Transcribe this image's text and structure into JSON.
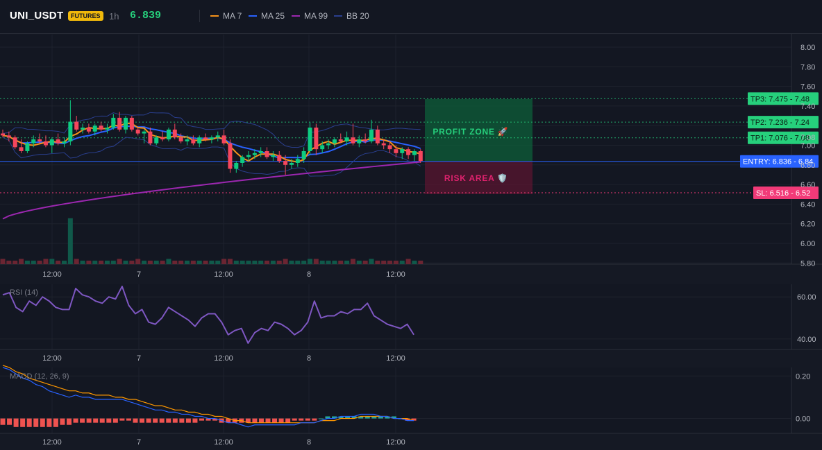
{
  "header": {
    "symbol": "UNI_USDT",
    "badge": "FUTURES",
    "timeframe": "1h",
    "price": "6.839",
    "indicators": [
      {
        "label": "MA 7",
        "color": "#f7931a"
      },
      {
        "label": "MA 25",
        "color": "#2962ff"
      },
      {
        "label": "MA 99",
        "color": "#9c27b0"
      },
      {
        "label": "BB 20",
        "color": "#2a3f8f"
      }
    ]
  },
  "levels": {
    "tp3": {
      "label": "TP3: 7.475 - 7.48",
      "value": 7.475
    },
    "tp2": {
      "label": "TP2: 7.236 - 7.24",
      "value": 7.236
    },
    "tp1": {
      "label": "TP1: 7.076 - 7.08",
      "value": 7.076
    },
    "entry": {
      "label": "ENTRY: 6.836 - 6.84",
      "value": 6.836
    },
    "sl": {
      "label": "SL: 6.516 - 6.52",
      "value": 6.516
    }
  },
  "zones": {
    "profit_label": "PROFIT ZONE 🚀",
    "risk_label": "RISK AREA 🛡️"
  },
  "panels": {
    "rsi_label": "RSI (14)",
    "macd_label": "MACD (12, 26, 9)"
  },
  "chart_data": {
    "type": "candlestick",
    "x_tick_labels": [
      "12:00",
      "7",
      "12:00",
      "8",
      "12:00"
    ],
    "price_axis": {
      "ticks": [
        "8.00",
        "7.80",
        "7.60",
        "7.40",
        "7.08",
        "7.00",
        "6.80",
        "6.60",
        "6.40",
        "6.20",
        "6.00",
        "5.80"
      ],
      "range": [
        5.8,
        8.0
      ]
    },
    "candles": [
      {
        "o": 7.12,
        "h": 7.16,
        "l": 7.08,
        "c": 7.1
      },
      {
        "o": 7.1,
        "h": 7.14,
        "l": 7.04,
        "c": 7.08
      },
      {
        "o": 7.08,
        "h": 7.1,
        "l": 6.96,
        "c": 6.98
      },
      {
        "o": 6.98,
        "h": 7.06,
        "l": 6.92,
        "c": 6.94
      },
      {
        "o": 6.94,
        "h": 7.04,
        "l": 6.92,
        "c": 7.02
      },
      {
        "o": 7.02,
        "h": 7.1,
        "l": 6.98,
        "c": 7.06
      },
      {
        "o": 7.06,
        "h": 7.12,
        "l": 7.02,
        "c": 7.04
      },
      {
        "o": 7.04,
        "h": 7.1,
        "l": 6.98,
        "c": 7.0
      },
      {
        "o": 7.0,
        "h": 7.08,
        "l": 6.92,
        "c": 7.06
      },
      {
        "o": 7.06,
        "h": 7.12,
        "l": 7.0,
        "c": 7.02
      },
      {
        "o": 7.02,
        "h": 7.08,
        "l": 6.98,
        "c": 7.04
      },
      {
        "o": 7.04,
        "h": 7.46,
        "l": 7.0,
        "c": 7.24
      },
      {
        "o": 7.24,
        "h": 7.3,
        "l": 7.14,
        "c": 7.16
      },
      {
        "o": 7.16,
        "h": 7.22,
        "l": 7.12,
        "c": 7.18
      },
      {
        "o": 7.18,
        "h": 7.22,
        "l": 7.12,
        "c": 7.14
      },
      {
        "o": 7.14,
        "h": 7.22,
        "l": 7.1,
        "c": 7.2
      },
      {
        "o": 7.2,
        "h": 7.24,
        "l": 7.14,
        "c": 7.16
      },
      {
        "o": 7.16,
        "h": 7.22,
        "l": 7.12,
        "c": 7.18
      },
      {
        "o": 7.18,
        "h": 7.32,
        "l": 7.16,
        "c": 7.28
      },
      {
        "o": 7.28,
        "h": 7.34,
        "l": 7.14,
        "c": 7.16
      },
      {
        "o": 7.16,
        "h": 7.3,
        "l": 7.12,
        "c": 7.28
      },
      {
        "o": 7.28,
        "h": 7.3,
        "l": 7.14,
        "c": 7.16
      },
      {
        "o": 7.16,
        "h": 7.18,
        "l": 7.1,
        "c": 7.12
      },
      {
        "o": 7.12,
        "h": 7.16,
        "l": 7.02,
        "c": 7.14
      },
      {
        "o": 7.14,
        "h": 7.18,
        "l": 7.0,
        "c": 7.02
      },
      {
        "o": 7.02,
        "h": 7.1,
        "l": 7.0,
        "c": 7.08
      },
      {
        "o": 7.08,
        "h": 7.14,
        "l": 7.04,
        "c": 7.06
      },
      {
        "o": 7.06,
        "h": 7.18,
        "l": 7.04,
        "c": 7.16
      },
      {
        "o": 7.16,
        "h": 7.22,
        "l": 7.06,
        "c": 7.08
      },
      {
        "o": 7.08,
        "h": 7.12,
        "l": 7.02,
        "c": 7.04
      },
      {
        "o": 7.04,
        "h": 7.1,
        "l": 7.0,
        "c": 7.06
      },
      {
        "o": 7.06,
        "h": 7.1,
        "l": 7.0,
        "c": 7.02
      },
      {
        "o": 7.02,
        "h": 7.1,
        "l": 6.98,
        "c": 7.08
      },
      {
        "o": 7.08,
        "h": 7.12,
        "l": 7.04,
        "c": 7.06
      },
      {
        "o": 7.06,
        "h": 7.1,
        "l": 7.02,
        "c": 7.08
      },
      {
        "o": 7.08,
        "h": 7.14,
        "l": 7.04,
        "c": 7.1
      },
      {
        "o": 7.1,
        "h": 7.16,
        "l": 7.0,
        "c": 7.02
      },
      {
        "o": 7.02,
        "h": 7.06,
        "l": 6.72,
        "c": 6.76
      },
      {
        "o": 6.76,
        "h": 6.84,
        "l": 6.72,
        "c": 6.82
      },
      {
        "o": 6.82,
        "h": 6.9,
        "l": 6.78,
        "c": 6.88
      },
      {
        "o": 6.88,
        "h": 6.94,
        "l": 6.84,
        "c": 6.9
      },
      {
        "o": 6.9,
        "h": 6.96,
        "l": 6.86,
        "c": 6.92
      },
      {
        "o": 6.92,
        "h": 6.98,
        "l": 6.88,
        "c": 6.94
      },
      {
        "o": 6.94,
        "h": 6.98,
        "l": 6.86,
        "c": 6.88
      },
      {
        "o": 6.88,
        "h": 6.94,
        "l": 6.84,
        "c": 6.9
      },
      {
        "o": 6.9,
        "h": 6.94,
        "l": 6.82,
        "c": 6.84
      },
      {
        "o": 6.84,
        "h": 6.9,
        "l": 6.7,
        "c": 6.8
      },
      {
        "o": 6.8,
        "h": 6.86,
        "l": 6.76,
        "c": 6.82
      },
      {
        "o": 6.82,
        "h": 6.9,
        "l": 6.78,
        "c": 6.86
      },
      {
        "o": 6.86,
        "h": 6.98,
        "l": 6.82,
        "c": 6.94
      },
      {
        "o": 6.94,
        "h": 7.24,
        "l": 6.9,
        "c": 7.18
      },
      {
        "o": 7.18,
        "h": 7.22,
        "l": 6.9,
        "c": 6.96
      },
      {
        "o": 6.96,
        "h": 7.04,
        "l": 6.92,
        "c": 7.0
      },
      {
        "o": 7.0,
        "h": 7.06,
        "l": 6.96,
        "c": 7.02
      },
      {
        "o": 7.02,
        "h": 7.08,
        "l": 6.98,
        "c": 7.06
      },
      {
        "o": 7.06,
        "h": 7.12,
        "l": 7.02,
        "c": 7.04
      },
      {
        "o": 7.04,
        "h": 7.14,
        "l": 7.0,
        "c": 7.08
      },
      {
        "o": 7.08,
        "h": 7.22,
        "l": 7.0,
        "c": 7.02
      },
      {
        "o": 7.02,
        "h": 7.1,
        "l": 6.98,
        "c": 7.06
      },
      {
        "o": 7.06,
        "h": 7.12,
        "l": 7.02,
        "c": 7.04
      },
      {
        "o": 7.04,
        "h": 7.26,
        "l": 7.02,
        "c": 7.16
      },
      {
        "o": 7.16,
        "h": 7.2,
        "l": 7.0,
        "c": 7.02
      },
      {
        "o": 7.02,
        "h": 7.06,
        "l": 6.96,
        "c": 7.0
      },
      {
        "o": 7.0,
        "h": 7.04,
        "l": 6.92,
        "c": 6.96
      },
      {
        "o": 6.96,
        "h": 7.0,
        "l": 6.88,
        "c": 6.92
      },
      {
        "o": 6.92,
        "h": 6.98,
        "l": 6.86,
        "c": 6.96
      },
      {
        "o": 6.96,
        "h": 6.98,
        "l": 6.86,
        "c": 6.9
      },
      {
        "o": 6.9,
        "h": 6.96,
        "l": 6.84,
        "c": 6.94
      },
      {
        "o": 6.94,
        "h": 6.96,
        "l": 6.82,
        "c": 6.84
      }
    ],
    "volume": [
      3,
      2,
      2,
      3,
      2,
      2,
      2,
      3,
      3,
      2,
      2,
      26,
      3,
      2,
      2,
      2,
      2,
      2,
      2,
      3,
      2,
      2,
      3,
      2,
      2,
      2,
      2,
      3,
      2,
      2,
      2,
      2,
      2,
      2,
      2,
      2,
      3,
      3,
      2,
      2,
      2,
      2,
      2,
      2,
      2,
      2,
      3,
      2,
      2,
      2,
      3,
      3,
      2,
      2,
      2,
      2,
      2,
      3,
      2,
      2,
      3,
      2,
      2,
      2,
      2,
      2,
      3,
      2,
      2
    ],
    "rsi": {
      "ticks": [
        "60.00",
        "40.00"
      ],
      "range": [
        35,
        66
      ],
      "values": [
        61,
        62,
        55,
        53,
        58,
        56,
        60,
        58,
        55,
        54,
        54,
        64,
        61,
        60,
        58,
        57,
        60,
        59,
        65,
        56,
        52,
        54,
        48,
        47,
        50,
        55,
        53,
        51,
        49,
        46,
        50,
        52,
        52,
        48,
        42,
        44,
        45,
        38,
        43,
        45,
        44,
        48,
        47,
        45,
        42,
        44,
        48,
        58,
        50,
        51,
        51,
        53,
        52,
        54,
        54,
        57,
        51,
        49,
        47,
        46,
        45,
        47,
        42
      ]
    },
    "macd": {
      "ticks": [
        "0.20",
        "0.00"
      ],
      "range": [
        -0.07,
        0.24
      ],
      "macd": [
        0.24,
        0.23,
        0.21,
        0.19,
        0.18,
        0.16,
        0.15,
        0.13,
        0.12,
        0.11,
        0.1,
        0.11,
        0.1,
        0.1,
        0.09,
        0.09,
        0.09,
        0.09,
        0.09,
        0.08,
        0.07,
        0.06,
        0.05,
        0.04,
        0.04,
        0.03,
        0.03,
        0.02,
        0.02,
        0.01,
        0.01,
        0.0,
        0.0,
        -0.01,
        -0.02,
        -0.02,
        -0.03,
        -0.04,
        -0.03,
        -0.03,
        -0.03,
        -0.03,
        -0.03,
        -0.03,
        -0.03,
        -0.02,
        -0.02,
        -0.02,
        -0.01,
        0.0,
        0.0,
        0.01,
        0.01,
        0.01,
        0.02,
        0.02,
        0.02,
        0.01,
        0.01,
        0.0,
        0.0,
        -0.01,
        -0.01
      ],
      "signal": [
        0.25,
        0.24,
        0.22,
        0.21,
        0.19,
        0.18,
        0.17,
        0.16,
        0.15,
        0.14,
        0.13,
        0.13,
        0.12,
        0.12,
        0.11,
        0.11,
        0.11,
        0.1,
        0.1,
        0.09,
        0.09,
        0.08,
        0.07,
        0.06,
        0.06,
        0.05,
        0.04,
        0.04,
        0.03,
        0.03,
        0.02,
        0.02,
        0.01,
        0.01,
        0.0,
        -0.01,
        -0.01,
        -0.02,
        -0.02,
        -0.02,
        -0.02,
        -0.02,
        -0.02,
        -0.02,
        -0.02,
        -0.02,
        -0.02,
        -0.02,
        -0.01,
        -0.01,
        -0.01,
        0.0,
        0.0,
        0.0,
        0.01,
        0.01,
        0.01,
        0.01,
        0.01,
        0.0,
        0.0,
        0.0,
        -0.01
      ],
      "histogram": [
        -0.03,
        -0.03,
        -0.04,
        -0.04,
        -0.04,
        -0.04,
        -0.04,
        -0.04,
        -0.04,
        -0.03,
        -0.03,
        -0.02,
        -0.02,
        -0.02,
        -0.02,
        -0.02,
        -0.02,
        -0.02,
        -0.01,
        -0.01,
        -0.02,
        -0.02,
        -0.02,
        -0.02,
        -0.02,
        -0.02,
        -0.02,
        -0.02,
        -0.02,
        -0.02,
        -0.01,
        -0.01,
        -0.01,
        -0.02,
        -0.02,
        -0.02,
        -0.02,
        -0.02,
        -0.02,
        -0.02,
        -0.02,
        -0.02,
        -0.02,
        -0.02,
        -0.01,
        -0.01,
        -0.01,
        -0.01,
        0.0,
        0.01,
        0.01,
        0.01,
        0.01,
        0.01,
        0.01,
        0.01,
        0.01,
        0.01,
        0.01,
        0.01,
        0.0,
        -0.01,
        -0.01
      ]
    }
  }
}
